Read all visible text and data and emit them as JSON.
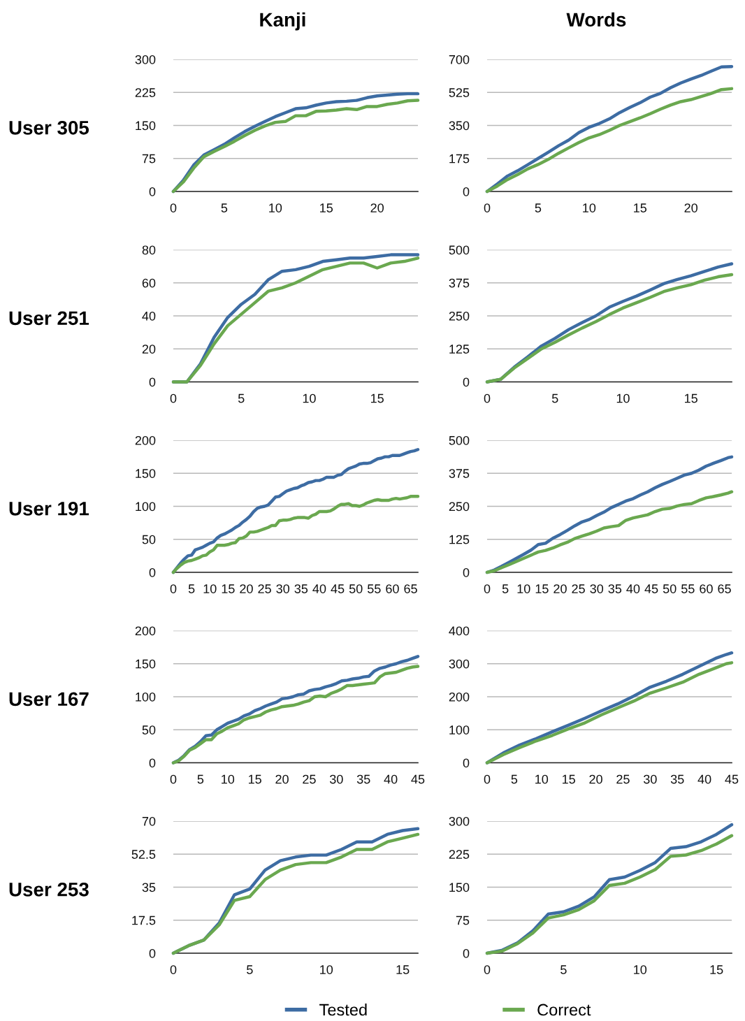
{
  "chart_data": [
    {
      "type": "line",
      "title": "Kanji",
      "ylabel": "User 305",
      "x": [
        0,
        1,
        2,
        3,
        4,
        5,
        6,
        7,
        8,
        9,
        10,
        11,
        12,
        13,
        14,
        15,
        16,
        17,
        18,
        19,
        20,
        21,
        22,
        23,
        24
      ],
      "xlim": [
        0,
        24
      ],
      "xticks": [
        0,
        5,
        10,
        15,
        20
      ],
      "ylim": [
        0,
        300
      ],
      "yticks": [
        0,
        75,
        150,
        225,
        300
      ],
      "grid": "y",
      "legend": "bottom",
      "series": [
        {
          "name": "Tested",
          "color": "#3d6ca3",
          "values": [
            0,
            26,
            60,
            83,
            95,
            107,
            122,
            136,
            148,
            159,
            170,
            179,
            188,
            190,
            196,
            201,
            204,
            205,
            207,
            213,
            217,
            219,
            221,
            222,
            222
          ]
        },
        {
          "name": "Correct",
          "color": "#6aa84f",
          "values": [
            0,
            22,
            53,
            79,
            91,
            102,
            114,
            127,
            139,
            149,
            157,
            159,
            172,
            172,
            182,
            183,
            185,
            188,
            186,
            193,
            193,
            198,
            201,
            206,
            207
          ]
        }
      ]
    },
    {
      "type": "line",
      "title": "Words",
      "x": [
        0,
        1,
        2,
        3,
        4,
        5,
        6,
        7,
        8,
        9,
        10,
        11,
        12,
        13,
        14,
        15,
        16,
        17,
        18,
        19,
        20,
        21,
        22,
        23,
        24
      ],
      "xlim": [
        0,
        24
      ],
      "xticks": [
        0,
        5,
        10,
        15,
        20
      ],
      "ylim": [
        0,
        700
      ],
      "yticks": [
        0,
        175,
        350,
        525,
        700
      ],
      "grid": "y",
      "series": [
        {
          "name": "Tested",
          "color": "#3d6ca3",
          "values": [
            0,
            40,
            82,
            110,
            142,
            175,
            208,
            242,
            272,
            312,
            340,
            360,
            385,
            418,
            445,
            470,
            500,
            520,
            550,
            575,
            596,
            615,
            638,
            660,
            662
          ]
        },
        {
          "name": "Correct",
          "color": "#6aa84f",
          "values": [
            0,
            29,
            63,
            90,
            120,
            143,
            170,
            202,
            231,
            259,
            284,
            301,
            324,
            350,
            370,
            390,
            412,
            436,
            458,
            476,
            487,
            503,
            520,
            540,
            545
          ]
        }
      ]
    },
    {
      "type": "line",
      "ylabel": "User 251",
      "x": [
        0,
        1,
        2,
        3,
        4,
        5,
        6,
        7,
        8,
        9,
        10,
        11,
        12,
        13,
        14,
        15,
        16,
        17,
        18
      ],
      "xlim": [
        0,
        18
      ],
      "xticks": [
        0,
        5,
        10,
        15
      ],
      "ylim": [
        0,
        80
      ],
      "yticks": [
        0,
        20,
        40,
        60,
        80
      ],
      "grid": "y",
      "series": [
        {
          "name": "Tested",
          "color": "#3d6ca3",
          "values": [
            0,
            0,
            11,
            27,
            39,
            47,
            53,
            62,
            67,
            68,
            70,
            73,
            74,
            75,
            75,
            76,
            77,
            77,
            77
          ]
        },
        {
          "name": "Correct",
          "color": "#6aa84f",
          "values": [
            0,
            0,
            10,
            23,
            34,
            41,
            48,
            55,
            57,
            60,
            64,
            68,
            70,
            72,
            72,
            69,
            72,
            73,
            75
          ]
        }
      ]
    },
    {
      "type": "line",
      "x": [
        0,
        1,
        2,
        3,
        4,
        5,
        6,
        7,
        8,
        9,
        10,
        11,
        12,
        13,
        14,
        15,
        16,
        17,
        18
      ],
      "xlim": [
        0,
        18
      ],
      "xticks": [
        0,
        5,
        10,
        15
      ],
      "ylim": [
        0,
        500
      ],
      "yticks": [
        0,
        125,
        250,
        375,
        500
      ],
      "grid": "y",
      "series": [
        {
          "name": "Tested",
          "color": "#3d6ca3",
          "values": [
            0,
            10,
            56,
            95,
            136,
            165,
            198,
            225,
            250,
            283,
            305,
            325,
            348,
            372,
            388,
            402,
            418,
            435,
            447
          ]
        },
        {
          "name": "Correct",
          "color": "#6aa84f",
          "values": [
            0,
            10,
            53,
            89,
            125,
            150,
            178,
            204,
            228,
            255,
            280,
            300,
            320,
            342,
            356,
            368,
            385,
            398,
            406
          ]
        }
      ]
    },
    {
      "type": "line",
      "ylabel": "User 191",
      "x": [
        0,
        1,
        2,
        3,
        4,
        5,
        6,
        7,
        8,
        9,
        10,
        11,
        12,
        13,
        14,
        15,
        16,
        17,
        18,
        19,
        20,
        21,
        22,
        23,
        24,
        25,
        26,
        27,
        28,
        29,
        30,
        31,
        32,
        33,
        34,
        35,
        36,
        37,
        38,
        39,
        40,
        41,
        42,
        43,
        44,
        45,
        46,
        47,
        48,
        49,
        50,
        51,
        52,
        53,
        54,
        55,
        56,
        57,
        58,
        59,
        60,
        61,
        62,
        63,
        64,
        65,
        66,
        67
      ],
      "xlim": [
        0,
        67
      ],
      "xticks": [
        0,
        5,
        10,
        15,
        20,
        25,
        30,
        35,
        40,
        45,
        50,
        55,
        60,
        65
      ],
      "ylim": [
        0,
        200
      ],
      "yticks": [
        0,
        50,
        100,
        150,
        200
      ],
      "grid": "y",
      "series": [
        {
          "name": "Tested",
          "color": "#3d6ca3",
          "values": [
            0,
            7,
            14,
            20,
            25,
            26,
            34,
            36,
            38,
            41,
            44,
            46,
            52,
            56,
            58,
            61,
            64,
            68,
            71,
            76,
            80,
            85,
            92,
            97,
            99,
            100,
            102,
            108,
            114,
            115,
            119,
            123,
            125,
            127,
            128,
            131,
            133,
            136,
            137,
            139,
            139,
            141,
            144,
            144,
            144,
            147,
            148,
            153,
            157,
            159,
            161,
            164,
            165,
            165,
            166,
            169,
            172,
            173,
            175,
            175,
            177,
            177,
            177,
            179,
            181,
            183,
            184,
            186
          ]
        },
        {
          "name": "Correct",
          "color": "#6aa84f",
          "values": [
            0,
            6,
            11,
            15,
            17,
            18,
            20,
            22,
            25,
            26,
            31,
            34,
            41,
            41,
            41,
            42,
            44,
            45,
            51,
            52,
            55,
            61,
            61,
            62,
            64,
            66,
            68,
            71,
            71,
            78,
            79,
            79,
            80,
            82,
            83,
            83,
            83,
            82,
            86,
            88,
            92,
            92,
            92,
            93,
            96,
            100,
            103,
            103,
            104,
            101,
            101,
            100,
            102,
            105,
            107,
            109,
            110,
            109,
            109,
            109,
            111,
            112,
            111,
            112,
            113,
            115,
            115,
            115
          ]
        }
      ]
    },
    {
      "type": "line",
      "x": [
        0,
        2,
        4,
        6,
        8,
        10,
        12,
        14,
        16,
        18,
        20,
        22,
        24,
        26,
        28,
        30,
        32,
        34,
        36,
        38,
        40,
        42,
        44,
        46,
        48,
        50,
        52,
        54,
        56,
        58,
        60,
        62,
        64,
        66,
        67
      ],
      "xlim": [
        0,
        67
      ],
      "xticks": [
        0,
        5,
        10,
        15,
        20,
        25,
        30,
        35,
        40,
        45,
        50,
        55,
        60,
        65
      ],
      "ylim": [
        0,
        500
      ],
      "yticks": [
        0,
        125,
        250,
        375,
        500
      ],
      "grid": "y",
      "series": [
        {
          "name": "Tested",
          "color": "#3d6ca3",
          "values": [
            0,
            9,
            23,
            38,
            53,
            68,
            84,
            105,
            110,
            129,
            143,
            159,
            176,
            191,
            200,
            215,
            228,
            245,
            257,
            270,
            279,
            293,
            305,
            320,
            333,
            344,
            356,
            368,
            375,
            387,
            402,
            413,
            423,
            434,
            437
          ]
        },
        {
          "name": "Correct",
          "color": "#6aa84f",
          "values": [
            0,
            6,
            18,
            29,
            41,
            53,
            65,
            77,
            83,
            92,
            104,
            114,
            128,
            137,
            146,
            156,
            168,
            173,
            177,
            197,
            206,
            212,
            218,
            230,
            239,
            242,
            251,
            257,
            260,
            272,
            282,
            287,
            293,
            300,
            305
          ]
        }
      ]
    },
    {
      "type": "line",
      "ylabel": "User 167",
      "x": [
        0,
        1,
        2,
        3,
        4,
        5,
        6,
        7,
        8,
        9,
        10,
        11,
        12,
        13,
        14,
        15,
        16,
        17,
        18,
        19,
        20,
        21,
        22,
        23,
        24,
        25,
        26,
        27,
        28,
        29,
        30,
        31,
        32,
        33,
        34,
        35,
        36,
        37,
        38,
        39,
        40,
        41,
        42,
        43,
        44,
        45
      ],
      "xlim": [
        0,
        45
      ],
      "xticks": [
        0,
        5,
        10,
        15,
        20,
        25,
        30,
        35,
        40,
        45
      ],
      "ylim": [
        0,
        200
      ],
      "yticks": [
        0,
        50,
        100,
        150,
        200
      ],
      "grid": "y",
      "series": [
        {
          "name": "Tested",
          "color": "#3d6ca3",
          "values": [
            0,
            4,
            11,
            20,
            25,
            32,
            41,
            42,
            50,
            55,
            60,
            63,
            66,
            71,
            74,
            79,
            82,
            86,
            89,
            92,
            97,
            98,
            100,
            103,
            104,
            109,
            111,
            112,
            115,
            117,
            120,
            124,
            125,
            127,
            128,
            130,
            131,
            139,
            143,
            145,
            148,
            150,
            153,
            155,
            158,
            161
          ]
        },
        {
          "name": "Correct",
          "color": "#6aa84f",
          "values": [
            0,
            3,
            10,
            19,
            23,
            29,
            35,
            35,
            44,
            48,
            53,
            56,
            59,
            65,
            68,
            70,
            72,
            77,
            80,
            82,
            85,
            86,
            87,
            89,
            92,
            94,
            100,
            101,
            100,
            105,
            108,
            112,
            117,
            117,
            118,
            119,
            120,
            121,
            130,
            135,
            136,
            137,
            140,
            143,
            145,
            146
          ]
        }
      ]
    },
    {
      "type": "line",
      "x": [
        0,
        3,
        6,
        9,
        12,
        15,
        18,
        21,
        24,
        27,
        30,
        33,
        36,
        39,
        42,
        44,
        45
      ],
      "xlim": [
        0,
        45
      ],
      "xticks": [
        0,
        5,
        10,
        15,
        20,
        25,
        30,
        35,
        40,
        45
      ],
      "ylim": [
        0,
        400
      ],
      "yticks": [
        0,
        100,
        200,
        300,
        400
      ],
      "grid": "y",
      "series": [
        {
          "name": "Tested",
          "color": "#3d6ca3",
          "values": [
            0,
            30,
            54,
            73,
            94,
            114,
            135,
            157,
            178,
            202,
            229,
            247,
            268,
            292,
            316,
            328,
            333
          ]
        },
        {
          "name": "Correct",
          "color": "#6aa84f",
          "values": [
            0,
            25,
            46,
            66,
            83,
            103,
            121,
            145,
            166,
            187,
            211,
            227,
            244,
            268,
            287,
            300,
            303
          ]
        }
      ]
    },
    {
      "type": "line",
      "ylabel": "User 253",
      "x": [
        0,
        1,
        2,
        3,
        4,
        5,
        6,
        7,
        8,
        9,
        10,
        11,
        12,
        13,
        14,
        15,
        16
      ],
      "xlim": [
        0,
        16
      ],
      "xticks": [
        0,
        5,
        10,
        15
      ],
      "ylim": [
        0,
        70
      ],
      "yticks": [
        0,
        17.5,
        35,
        52.5,
        70
      ],
      "grid": "y",
      "series": [
        {
          "name": "Tested",
          "color": "#3d6ca3",
          "values": [
            0,
            4,
            7,
            16,
            31,
            34,
            44,
            49,
            51,
            52,
            52,
            55,
            59,
            59,
            63,
            65,
            66
          ]
        },
        {
          "name": "Correct",
          "color": "#6aa84f",
          "values": [
            0,
            4,
            7,
            15,
            28,
            30,
            39,
            44,
            47,
            48,
            48,
            51,
            55,
            55,
            59,
            61,
            63
          ]
        }
      ]
    },
    {
      "type": "line",
      "x": [
        0,
        1,
        2,
        3,
        4,
        5,
        6,
        7,
        8,
        9,
        10,
        11,
        12,
        13,
        14,
        15,
        16
      ],
      "xlim": [
        0,
        16
      ],
      "xticks": [
        0,
        5,
        10,
        15
      ],
      "ylim": [
        0,
        300
      ],
      "yticks": [
        0,
        75,
        150,
        225,
        300
      ],
      "grid": "y",
      "series": [
        {
          "name": "Tested",
          "color": "#3d6ca3",
          "values": [
            0,
            7,
            24,
            51,
            89,
            94,
            107,
            128,
            167,
            173,
            188,
            206,
            238,
            242,
            253,
            270,
            292
          ]
        },
        {
          "name": "Correct",
          "color": "#6aa84f",
          "values": [
            0,
            5,
            22,
            46,
            80,
            87,
            99,
            119,
            154,
            159,
            173,
            190,
            220,
            223,
            233,
            248,
            267
          ]
        }
      ]
    }
  ]
}
